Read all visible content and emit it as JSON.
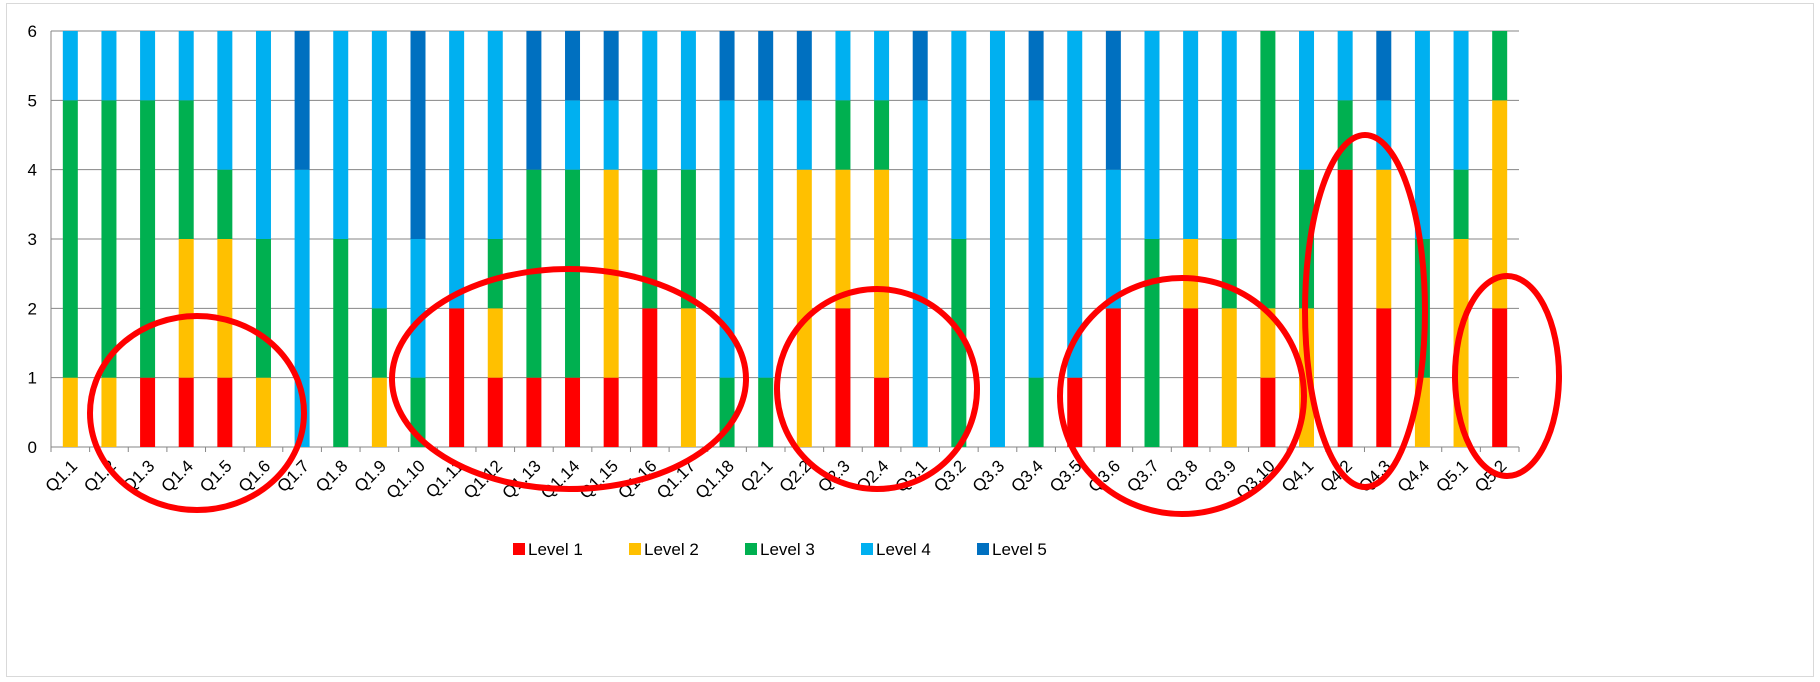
{
  "chart_data": {
    "type": "bar",
    "stacked": true,
    "categories": [
      "Q1.1",
      "Q1.2",
      "Q1.3",
      "Q1.4",
      "Q1.5",
      "Q1.6",
      "Q1.7",
      "Q1.8",
      "Q1.9",
      "Q1.10",
      "Q1.11",
      "Q1.12",
      "Q1.13",
      "Q1.14",
      "Q1.15",
      "Q1.16",
      "Q1.17",
      "Q1.18",
      "Q2.1",
      "Q2.2",
      "Q2.3",
      "Q2.4",
      "Q3.1",
      "Q3.2",
      "Q3.3",
      "Q3.4",
      "Q3.5",
      "Q3.6",
      "Q3.7",
      "Q3.8",
      "Q3.9",
      "Q3.10",
      "Q4.1",
      "Q4.2",
      "Q4.3",
      "Q4.4",
      "Q5.1",
      "Q5.2"
    ],
    "series": [
      {
        "name": "Level 1",
        "color": "#ff0000",
        "values": [
          0,
          0,
          1,
          1,
          1,
          0,
          0,
          0,
          0,
          0,
          2,
          1,
          1,
          1,
          1,
          2,
          0,
          0,
          0,
          0,
          2,
          1,
          0,
          0,
          0,
          0,
          1,
          2,
          0,
          2,
          0,
          1,
          0,
          4,
          2,
          0,
          0,
          2
        ]
      },
      {
        "name": "Level 2",
        "color": "#ffc000",
        "values": [
          1,
          1,
          0,
          2,
          2,
          1,
          0,
          0,
          1,
          0,
          0,
          1,
          0,
          0,
          3,
          0,
          2,
          0,
          0,
          4,
          2,
          3,
          0,
          0,
          0,
          0,
          0,
          0,
          0,
          1,
          2,
          1,
          2,
          0,
          2,
          1,
          3,
          3
        ]
      },
      {
        "name": "Level 3",
        "color": "#00b050",
        "values": [
          4,
          4,
          4,
          2,
          1,
          2,
          0,
          3,
          1,
          1,
          0,
          1,
          3,
          3,
          0,
          2,
          2,
          1,
          1,
          0,
          1,
          1,
          0,
          3,
          0,
          1,
          0,
          0,
          3,
          0,
          1,
          4,
          2,
          1,
          0,
          2,
          1,
          1
        ]
      },
      {
        "name": "Level 4",
        "color": "#00b0f0",
        "values": [
          1,
          1,
          1,
          1,
          2,
          3,
          4,
          3,
          4,
          2,
          4,
          3,
          0,
          1,
          1,
          2,
          2,
          4,
          4,
          1,
          1,
          1,
          5,
          3,
          6,
          4,
          5,
          2,
          3,
          3,
          3,
          0,
          2,
          1,
          1,
          3,
          2,
          0
        ]
      },
      {
        "name": "Level 5",
        "color": "#0070c0",
        "values": [
          0,
          0,
          0,
          0,
          0,
          0,
          2,
          0,
          0,
          3,
          0,
          0,
          2,
          1,
          1,
          0,
          0,
          1,
          1,
          1,
          0,
          0,
          1,
          0,
          0,
          1,
          0,
          2,
          0,
          0,
          0,
          0,
          0,
          0,
          1,
          0,
          0,
          0
        ]
      }
    ],
    "ylim": [
      0,
      6
    ],
    "yticks": [
      "0",
      "1",
      "2",
      "3",
      "4",
      "5",
      "6"
    ],
    "grid": true,
    "legend_position": "bottom",
    "annotations": "red ellipses highlighting groups of bars"
  }
}
